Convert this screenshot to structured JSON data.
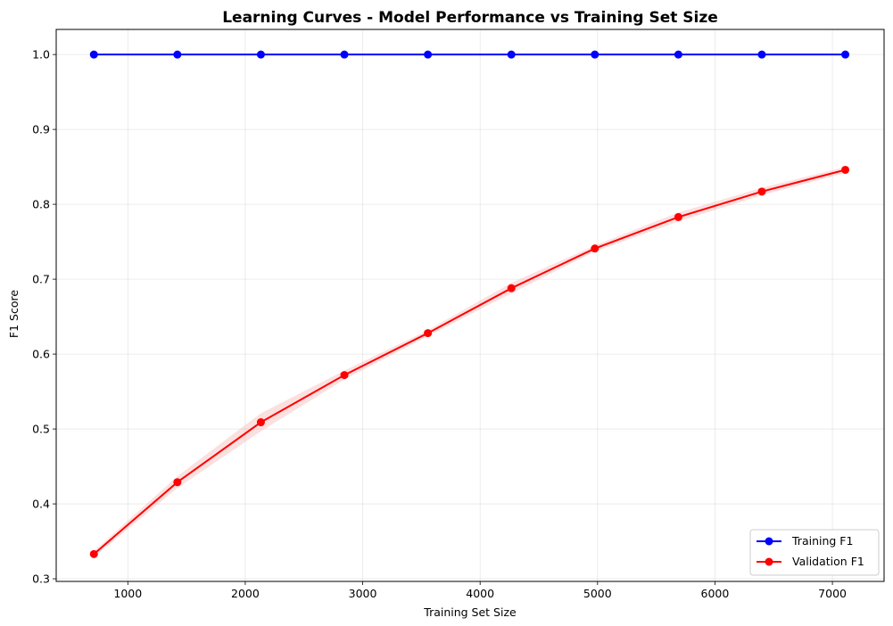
{
  "chart_data": {
    "type": "line",
    "title": "Learning Curves - Model Performance vs Training Set Size",
    "xlabel": "Training Set Size",
    "ylabel": "F1 Score",
    "xlim": [
      390,
      7440
    ],
    "ylim": [
      0.2965,
      1.0335
    ],
    "xticks": [
      1000,
      2000,
      3000,
      4000,
      5000,
      6000,
      7000
    ],
    "yticks": [
      0.3,
      0.4,
      0.5,
      0.6,
      0.7,
      0.8,
      0.9,
      1.0
    ],
    "grid": true,
    "legend_position": "lower-right",
    "x": [
      711,
      1422,
      2133,
      2844,
      3555,
      4266,
      4977,
      5688,
      6399,
      7110
    ],
    "series": [
      {
        "name": "Training F1",
        "color": "#0000ff",
        "values": [
          1.0,
          1.0,
          1.0,
          1.0,
          1.0,
          1.0,
          1.0,
          1.0,
          1.0,
          1.0
        ],
        "band_lower": [
          1.0,
          1.0,
          1.0,
          1.0,
          1.0,
          1.0,
          1.0,
          1.0,
          1.0,
          1.0
        ],
        "band_upper": [
          1.0,
          1.0,
          1.0,
          1.0,
          1.0,
          1.0,
          1.0,
          1.0,
          1.0,
          1.0
        ]
      },
      {
        "name": "Validation F1",
        "color": "#ff0000",
        "band_color": "#f4a6a6",
        "values": [
          0.333,
          0.429,
          0.509,
          0.572,
          0.628,
          0.688,
          0.741,
          0.783,
          0.817,
          0.846
        ],
        "band_lower": [
          0.329,
          0.421,
          0.497,
          0.566,
          0.624,
          0.681,
          0.737,
          0.777,
          0.812,
          0.842
        ],
        "band_upper": [
          0.337,
          0.437,
          0.521,
          0.578,
          0.632,
          0.695,
          0.745,
          0.789,
          0.822,
          0.85
        ]
      }
    ]
  }
}
